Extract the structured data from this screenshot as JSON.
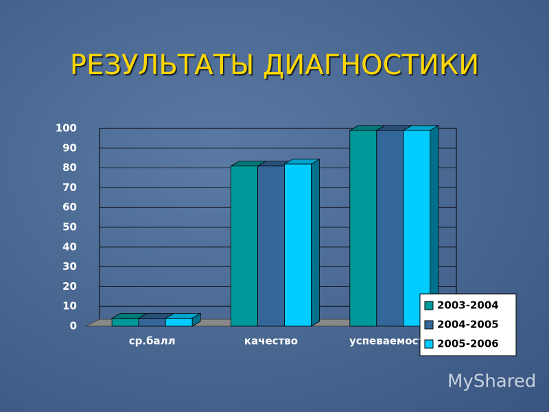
{
  "chart_data": {
    "type": "bar",
    "title": "РЕЗУЛЬТАТЫ ДИАГНОСТИКИ",
    "categories": [
      "ср.балл",
      "качество",
      "успеваемость"
    ],
    "series": [
      {
        "name": "2003-2004",
        "color": "#009999",
        "values": [
          4,
          81,
          99
        ]
      },
      {
        "name": "2004-2005",
        "color": "#336699",
        "values": [
          4,
          81,
          99
        ]
      },
      {
        "name": "2005-2006",
        "color": "#00ccff",
        "values": [
          4,
          82,
          99
        ]
      }
    ],
    "ylim": [
      0,
      100
    ],
    "yticks": [
      0,
      10,
      20,
      30,
      40,
      50,
      60,
      70,
      80,
      90,
      100
    ],
    "grid": true,
    "legend": "lower right",
    "watermark": "MyShared"
  }
}
